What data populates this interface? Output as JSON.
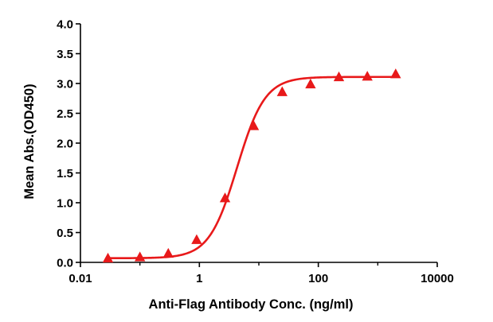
{
  "chart_data": {
    "type": "scatter",
    "xlabel": "Anti-Flag Antibody Conc. (ng/ml)",
    "ylabel": "Mean Abs.(OD450)",
    "x_scale": "log",
    "xlim": [
      0.01,
      10000
    ],
    "ylim": [
      0,
      4.0
    ],
    "x_ticks": [
      0.01,
      1,
      100,
      10000
    ],
    "x_tick_labels": [
      "0.01",
      "1",
      "100",
      "10000"
    ],
    "y_ticks": [
      0.0,
      0.5,
      1.0,
      1.5,
      2.0,
      2.5,
      3.0,
      3.5,
      4.0
    ],
    "y_tick_labels": [
      "0.0",
      "0.5",
      "1.0",
      "1.5",
      "2.0",
      "2.5",
      "3.0",
      "3.5",
      "4.0"
    ],
    "grid": false,
    "legend": "none",
    "marker": "triangle",
    "color": "#e8191a",
    "series": [
      {
        "x": [
          0.029,
          0.1,
          0.3,
          0.9,
          2.7,
          8.2,
          24.7,
          74,
          222,
          667,
          2000
        ],
        "y": [
          0.06,
          0.08,
          0.14,
          0.37,
          1.07,
          2.28,
          2.85,
          2.98,
          3.1,
          3.11,
          3.15
        ]
      }
    ],
    "fit_curve": {
      "model": "4PL",
      "bottom": 0.07,
      "top": 3.11,
      "ec50": 4.3,
      "hill": 1.85
    }
  }
}
